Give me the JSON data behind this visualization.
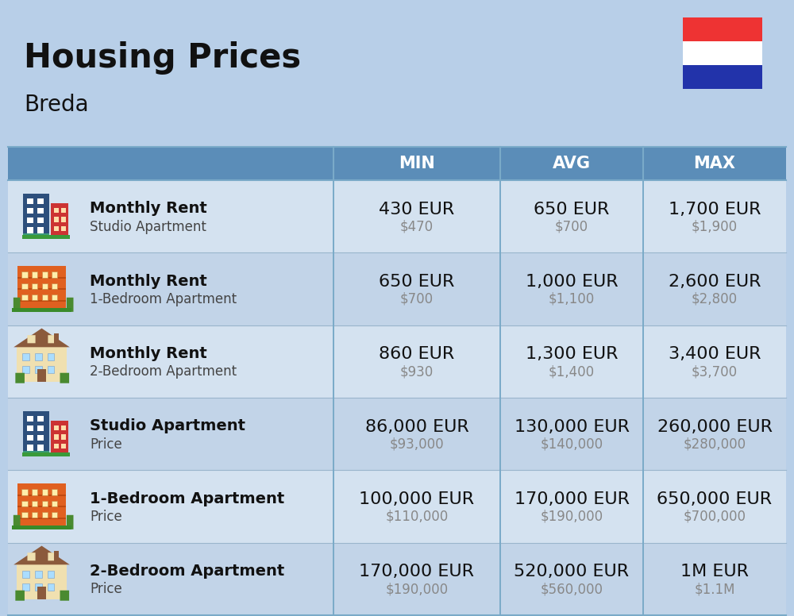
{
  "title": "Housing Prices",
  "subtitle": "Breda",
  "background_color": "#b8cfe8",
  "header_bg_color": "#5b8db8",
  "header_text_color": "#ffffff",
  "row_bg_light": "#d4e2f0",
  "row_bg_dark": "#c2d4e8",
  "col_divider_color": "#7aaac8",
  "headers": [
    "MIN",
    "AVG",
    "MAX"
  ],
  "rows": [
    {
      "icon_type": "blue_office",
      "label_bold": "Monthly Rent",
      "label_sub": "Studio Apartment",
      "min_eur": "430 EUR",
      "min_usd": "$470",
      "avg_eur": "650 EUR",
      "avg_usd": "$700",
      "max_eur": "1,700 EUR",
      "max_usd": "$1,900"
    },
    {
      "icon_type": "orange_apt",
      "label_bold": "Monthly Rent",
      "label_sub": "1-Bedroom Apartment",
      "min_eur": "650 EUR",
      "min_usd": "$700",
      "avg_eur": "1,000 EUR",
      "avg_usd": "$1,100",
      "max_eur": "2,600 EUR",
      "max_usd": "$2,800"
    },
    {
      "icon_type": "tan_house",
      "label_bold": "Monthly Rent",
      "label_sub": "2-Bedroom Apartment",
      "min_eur": "860 EUR",
      "min_usd": "$930",
      "avg_eur": "1,300 EUR",
      "avg_usd": "$1,400",
      "max_eur": "3,400 EUR",
      "max_usd": "$3,700"
    },
    {
      "icon_type": "blue_office",
      "label_bold": "Studio Apartment",
      "label_sub": "Price",
      "min_eur": "86,000 EUR",
      "min_usd": "$93,000",
      "avg_eur": "130,000 EUR",
      "avg_usd": "$140,000",
      "max_eur": "260,000 EUR",
      "max_usd": "$280,000"
    },
    {
      "icon_type": "orange_apt",
      "label_bold": "1-Bedroom Apartment",
      "label_sub": "Price",
      "min_eur": "100,000 EUR",
      "min_usd": "$110,000",
      "avg_eur": "170,000 EUR",
      "avg_usd": "$190,000",
      "max_eur": "650,000 EUR",
      "max_usd": "$700,000"
    },
    {
      "icon_type": "tan_house",
      "label_bold": "2-Bedroom Apartment",
      "label_sub": "Price",
      "min_eur": "170,000 EUR",
      "min_usd": "$190,000",
      "avg_eur": "520,000 EUR",
      "avg_usd": "$560,000",
      "max_eur": "1M EUR",
      "max_usd": "$1.1M"
    }
  ],
  "flag_colors": [
    "#ee3333",
    "#ffffff",
    "#2233aa"
  ],
  "title_fontsize": 30,
  "subtitle_fontsize": 20,
  "header_fontsize": 15,
  "label_bold_fontsize": 14,
  "label_sub_fontsize": 12,
  "eur_fontsize": 16,
  "usd_fontsize": 12
}
